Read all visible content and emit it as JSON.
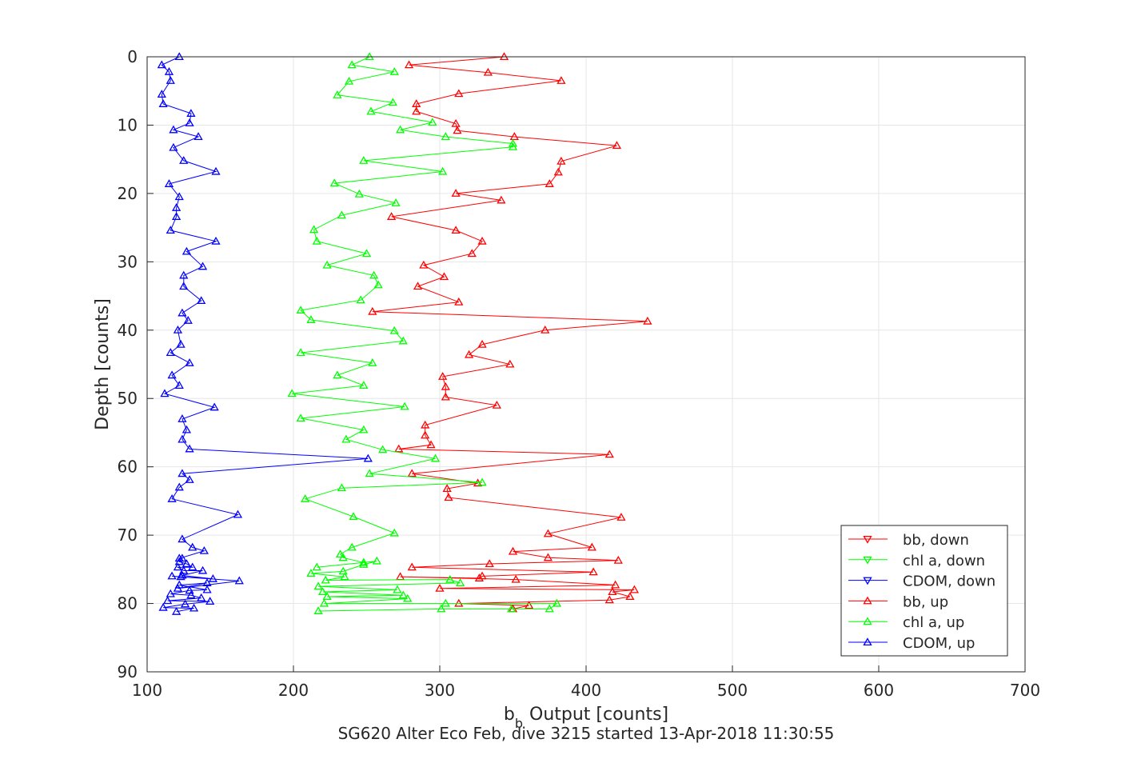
{
  "chart_data": {
    "type": "line",
    "title": "SG620 Alter Eco Feb, dive 3215 started 13-Apr-2018 11:30:55",
    "xlabel": "Output [counts]",
    "xlabel_symbol": "b",
    "xlabel_subscript": "b",
    "ylabel": "Depth [counts]",
    "xlim": [
      100,
      700
    ],
    "ylim": [
      0,
      90
    ],
    "y_reversed": true,
    "grid": true,
    "legend_position": "bottom-right",
    "x_ticks": [
      "100",
      "200",
      "300",
      "400",
      "500",
      "600",
      "700"
    ],
    "y_ticks": [
      "0",
      "10",
      "20",
      "30",
      "40",
      "50",
      "60",
      "70",
      "80",
      "90"
    ],
    "series": [
      {
        "name": "bb, down",
        "color": "#ff0000",
        "marker": "triangle-down",
        "points": []
      },
      {
        "name": "chl a, down",
        "color": "#00ff00",
        "marker": "triangle-down",
        "points": []
      },
      {
        "name": "CDOM, down",
        "color": "#0000ff",
        "marker": "triangle-down",
        "points": []
      },
      {
        "name": "bb, up",
        "color": "#ff0000",
        "marker": "triangle-up",
        "points": [
          [
            350,
            80.8
          ],
          [
            361,
            80.3
          ],
          [
            313,
            80.0
          ],
          [
            416,
            79.5
          ],
          [
            430,
            79.0
          ],
          [
            418,
            78.3
          ],
          [
            433,
            78.0
          ],
          [
            300,
            77.8
          ],
          [
            420,
            77.3
          ],
          [
            352,
            76.5
          ],
          [
            273,
            76.1
          ],
          [
            327,
            76.3
          ],
          [
            329,
            76.0
          ],
          [
            405,
            75.4
          ],
          [
            281,
            74.7
          ],
          [
            334,
            74.2
          ],
          [
            422,
            73.7
          ],
          [
            374,
            73.3
          ],
          [
            350,
            72.4
          ],
          [
            404,
            71.8
          ],
          [
            374,
            69.8
          ],
          [
            424,
            67.4
          ],
          [
            306,
            64.5
          ],
          [
            305,
            63.2
          ],
          [
            326,
            62.4
          ],
          [
            281,
            61.0
          ],
          [
            416,
            58.2
          ],
          [
            272,
            57.4
          ],
          [
            294,
            56.8
          ],
          [
            290,
            55.4
          ],
          [
            290,
            53.9
          ],
          [
            339,
            51.0
          ],
          [
            304,
            49.8
          ],
          [
            304,
            48.3
          ],
          [
            302,
            46.8
          ],
          [
            348,
            45.0
          ],
          [
            320,
            43.6
          ],
          [
            329,
            42.1
          ],
          [
            372,
            40.0
          ],
          [
            442,
            38.7
          ],
          [
            254,
            37.3
          ],
          [
            313,
            35.9
          ],
          [
            285,
            33.6
          ],
          [
            303,
            32.2
          ],
          [
            289,
            30.5
          ],
          [
            322,
            28.8
          ],
          [
            329,
            27.0
          ],
          [
            311,
            25.4
          ],
          [
            267,
            23.4
          ],
          [
            342,
            21.0
          ],
          [
            311,
            20.0
          ],
          [
            375,
            18.6
          ],
          [
            381,
            16.9
          ],
          [
            383,
            15.3
          ],
          [
            421,
            13.0
          ],
          [
            351,
            11.7
          ],
          [
            312,
            10.8
          ],
          [
            311,
            9.8
          ],
          [
            284,
            8.0
          ],
          [
            284,
            6.9
          ],
          [
            313,
            5.4
          ],
          [
            383,
            3.5
          ],
          [
            333,
            2.3
          ],
          [
            279,
            1.2
          ],
          [
            344,
            0.0
          ]
        ]
      },
      {
        "name": "chl a, up",
        "color": "#00ff00",
        "marker": "triangle-up",
        "points": [
          [
            217,
            81.1
          ],
          [
            301,
            80.8
          ],
          [
            349,
            80.8
          ],
          [
            375,
            80.8
          ],
          [
            380,
            80.0
          ],
          [
            304,
            80.0
          ],
          [
            221,
            80.0
          ],
          [
            278,
            79.3
          ],
          [
            223,
            79.0
          ],
          [
            275,
            78.8
          ],
          [
            220,
            78.3
          ],
          [
            271,
            78.0
          ],
          [
            217,
            77.5
          ],
          [
            314,
            77.0
          ],
          [
            307,
            76.5
          ],
          [
            222,
            76.6
          ],
          [
            235,
            76.1
          ],
          [
            212,
            75.6
          ],
          [
            234,
            75.3
          ],
          [
            248,
            74.3
          ],
          [
            257,
            73.8
          ],
          [
            216,
            74.7
          ],
          [
            248,
            74.0
          ],
          [
            234,
            73.3
          ],
          [
            232,
            72.8
          ],
          [
            240,
            71.8
          ],
          [
            269,
            69.7
          ],
          [
            241,
            67.3
          ],
          [
            208,
            64.7
          ],
          [
            233,
            63.1
          ],
          [
            329,
            62.3
          ],
          [
            252,
            61.0
          ],
          [
            297,
            58.8
          ],
          [
            261,
            57.5
          ],
          [
            236,
            56.0
          ],
          [
            248,
            54.6
          ],
          [
            205,
            52.9
          ],
          [
            276,
            51.2
          ],
          [
            199,
            49.3
          ],
          [
            248,
            48.1
          ],
          [
            230,
            46.6
          ],
          [
            254,
            44.8
          ],
          [
            205,
            43.3
          ],
          [
            275,
            41.6
          ],
          [
            269,
            40.1
          ],
          [
            212,
            38.5
          ],
          [
            205,
            37.1
          ],
          [
            246,
            35.6
          ],
          [
            258,
            33.4
          ],
          [
            255,
            32.0
          ],
          [
            223,
            30.5
          ],
          [
            250,
            28.8
          ],
          [
            216,
            27.0
          ],
          [
            214,
            25.3
          ],
          [
            233,
            23.2
          ],
          [
            270,
            21.4
          ],
          [
            245,
            20.1
          ],
          [
            228,
            18.5
          ],
          [
            302,
            16.8
          ],
          [
            248,
            15.2
          ],
          [
            350,
            13.2
          ],
          [
            350,
            12.7
          ],
          [
            304,
            11.7
          ],
          [
            273,
            10.7
          ],
          [
            295,
            9.6
          ],
          [
            253,
            8.0
          ],
          [
            268,
            6.7
          ],
          [
            230,
            5.6
          ],
          [
            238,
            3.6
          ],
          [
            269,
            2.2
          ],
          [
            240,
            1.2
          ],
          [
            252,
            0.0
          ]
        ]
      },
      {
        "name": "CDOM, up",
        "color": "#0000ff",
        "marker": "triangle-up",
        "points": [
          [
            120,
            81.2
          ],
          [
            132,
            80.7
          ],
          [
            111,
            80.6
          ],
          [
            126,
            80.1
          ],
          [
            143,
            79.7
          ],
          [
            114,
            79.6
          ],
          [
            137,
            79.2
          ],
          [
            130,
            78.8
          ],
          [
            116,
            78.6
          ],
          [
            129,
            78.1
          ],
          [
            141,
            78.0
          ],
          [
            122,
            77.3
          ],
          [
            141,
            77.0
          ],
          [
            121,
            77.8
          ],
          [
            163,
            76.7
          ],
          [
            123,
            76.1
          ],
          [
            117,
            76.0
          ],
          [
            145,
            76.4
          ],
          [
            124,
            75.9
          ],
          [
            138,
            75.2
          ],
          [
            125,
            75.2
          ],
          [
            121,
            74.7
          ],
          [
            131,
            74.7
          ],
          [
            127,
            74.2
          ],
          [
            122,
            73.9
          ],
          [
            124,
            73.4
          ],
          [
            122,
            73.4
          ],
          [
            139,
            72.3
          ],
          [
            131,
            71.8
          ],
          [
            124,
            70.6
          ],
          [
            162,
            67.0
          ],
          [
            117,
            64.7
          ],
          [
            122,
            63.0
          ],
          [
            129,
            61.9
          ],
          [
            124,
            61.0
          ],
          [
            251,
            58.8
          ],
          [
            129,
            57.4
          ],
          [
            124,
            56.0
          ],
          [
            127,
            54.6
          ],
          [
            124,
            53.0
          ],
          [
            146,
            51.3
          ],
          [
            112,
            49.3
          ],
          [
            122,
            48.1
          ],
          [
            117,
            46.6
          ],
          [
            129,
            44.8
          ],
          [
            116,
            43.3
          ],
          [
            123,
            42.1
          ],
          [
            121,
            40.0
          ],
          [
            128,
            38.6
          ],
          [
            124,
            37.5
          ],
          [
            137,
            35.7
          ],
          [
            125,
            33.6
          ],
          [
            125,
            32.0
          ],
          [
            138,
            30.7
          ],
          [
            127,
            28.5
          ],
          [
            147,
            27.0
          ],
          [
            116,
            25.4
          ],
          [
            120,
            23.4
          ],
          [
            120,
            22.1
          ],
          [
            122,
            20.5
          ],
          [
            115,
            18.6
          ],
          [
            147,
            16.8
          ],
          [
            125,
            15.2
          ],
          [
            118,
            13.3
          ],
          [
            135,
            11.7
          ],
          [
            118,
            10.7
          ],
          [
            129,
            9.7
          ],
          [
            130,
            8.3
          ],
          [
            111,
            6.9
          ],
          [
            110,
            5.5
          ],
          [
            116,
            3.5
          ],
          [
            115,
            2.2
          ],
          [
            110,
            1.2
          ],
          [
            122,
            0.0
          ]
        ]
      }
    ]
  }
}
